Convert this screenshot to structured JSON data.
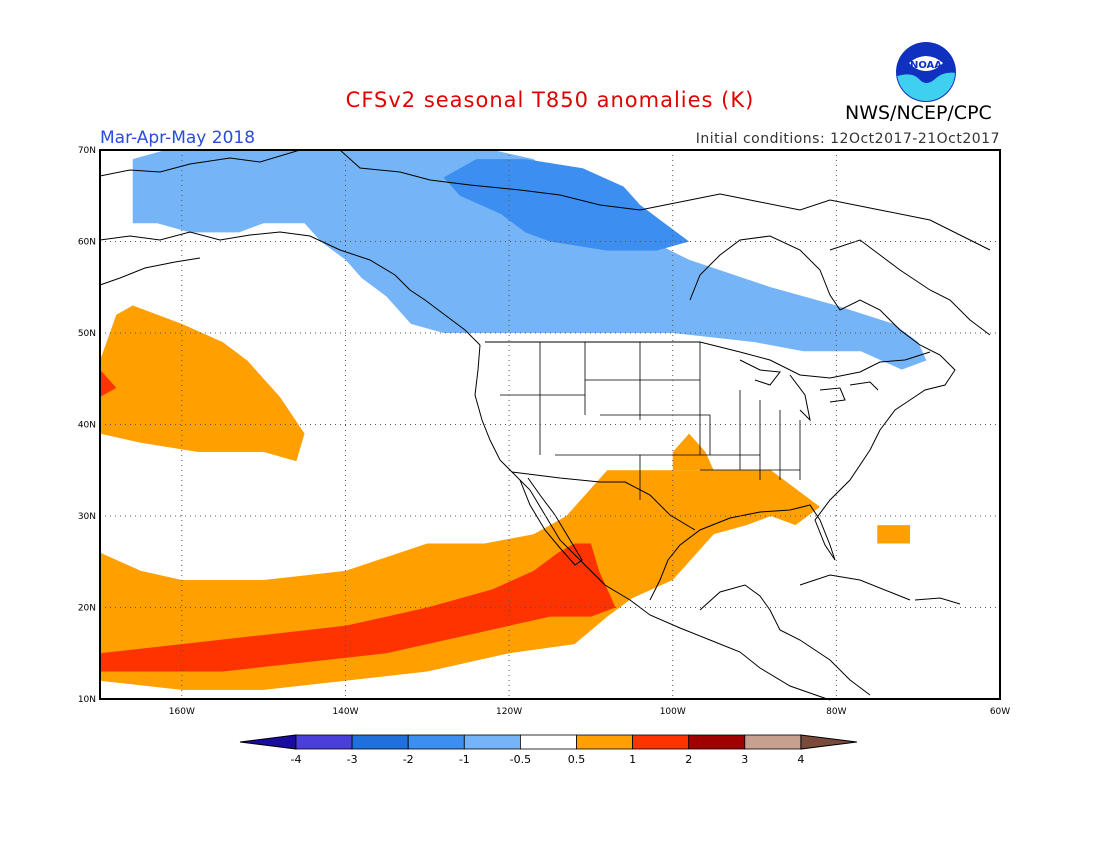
{
  "header": {
    "title": "CFSv2 seasonal T850 anomalies (K)",
    "agency": "NWS/NCEP/CPC",
    "season": "Mar-Apr-May 2018",
    "initial_conditions": "Initial conditions: 12Oct2017-21Oct2017",
    "logo_text": "NOAA"
  },
  "map": {
    "lon_range": [
      -170,
      -60
    ],
    "lat_range": [
      10,
      70
    ],
    "lon_ticks": [
      "160W",
      "140W",
      "120W",
      "100W",
      "80W",
      "60W"
    ],
    "lat_ticks": [
      "70N",
      "60N",
      "50N",
      "40N",
      "30N",
      "20N",
      "10N"
    ],
    "grid": true,
    "anomaly_fields": [
      {
        "level": "-1 to -0.5",
        "color": "#76b4f8",
        "polygon": [
          [
            -166,
            67
          ],
          [
            -166,
            62
          ],
          [
            -163,
            62
          ],
          [
            -159,
            61
          ],
          [
            -153,
            61
          ],
          [
            -150,
            62
          ],
          [
            -145,
            62
          ],
          [
            -143,
            60
          ],
          [
            -140,
            58
          ],
          [
            -138,
            56
          ],
          [
            -135,
            54
          ],
          [
            -132,
            51
          ],
          [
            -128,
            50
          ],
          [
            -110,
            50
          ],
          [
            -100,
            50
          ],
          [
            -90,
            49
          ],
          [
            -84,
            48
          ],
          [
            -77,
            48
          ],
          [
            -72,
            46
          ],
          [
            -69,
            47
          ],
          [
            -70,
            49
          ],
          [
            -73,
            51
          ],
          [
            -80,
            53
          ],
          [
            -88,
            55
          ],
          [
            -98,
            58
          ],
          [
            -107,
            62
          ],
          [
            -113,
            66
          ],
          [
            -117,
            69
          ],
          [
            -122,
            70
          ],
          [
            -150,
            70
          ],
          [
            -162,
            70
          ],
          [
            -166,
            69
          ]
        ]
      },
      {
        "level": "-2 to -1",
        "color": "#3c8ef0",
        "polygon": [
          [
            -128,
            67
          ],
          [
            -126,
            65
          ],
          [
            -121,
            63
          ],
          [
            -118,
            61
          ],
          [
            -115,
            60
          ],
          [
            -108,
            59
          ],
          [
            -102,
            59
          ],
          [
            -98,
            60
          ],
          [
            -101,
            62
          ],
          [
            -104,
            64
          ],
          [
            -106,
            66
          ],
          [
            -111,
            68
          ],
          [
            -118,
            69
          ],
          [
            -124,
            69
          ]
        ]
      },
      {
        "level": "0.5 to 1",
        "color": "#ff9f00",
        "polygon": [
          [
            -170,
            26
          ],
          [
            -165,
            24
          ],
          [
            -160,
            23
          ],
          [
            -150,
            23
          ],
          [
            -140,
            24
          ],
          [
            -130,
            27
          ],
          [
            -123,
            27
          ],
          [
            -117,
            28
          ],
          [
            -113,
            30
          ],
          [
            -110,
            33
          ],
          [
            -108,
            35
          ],
          [
            -104,
            35
          ],
          [
            -98,
            35
          ],
          [
            -92,
            35
          ],
          [
            -88,
            35
          ],
          [
            -85,
            33
          ],
          [
            -82,
            31
          ],
          [
            -85,
            29
          ],
          [
            -88,
            30
          ],
          [
            -91,
            29
          ],
          [
            -95,
            28
          ],
          [
            -98,
            25
          ],
          [
            -100,
            23
          ],
          [
            -105,
            21
          ],
          [
            -108,
            19
          ],
          [
            -112,
            16
          ],
          [
            -120,
            15
          ],
          [
            -130,
            13
          ],
          [
            -140,
            12
          ],
          [
            -150,
            11
          ],
          [
            -160,
            11
          ],
          [
            -170,
            12
          ]
        ]
      },
      {
        "level": "0.5 to 1",
        "color": "#ff9f00",
        "polygon": [
          [
            -170,
            47
          ],
          [
            -168,
            52
          ],
          [
            -166,
            53
          ],
          [
            -160,
            51
          ],
          [
            -155,
            49
          ],
          [
            -152,
            47
          ],
          [
            -150,
            45
          ],
          [
            -148,
            43
          ],
          [
            -145,
            39
          ],
          [
            -146,
            36
          ],
          [
            -150,
            37
          ],
          [
            -158,
            37
          ],
          [
            -165,
            38
          ],
          [
            -170,
            39
          ]
        ]
      },
      {
        "level": "0.5 to 1",
        "color": "#ff9f00",
        "polygon": [
          [
            -98,
            39
          ],
          [
            -97,
            38
          ],
          [
            -96,
            37
          ],
          [
            -95,
            35
          ],
          [
            -100,
            35
          ],
          [
            -100,
            37
          ]
        ]
      },
      {
        "level": "0.5 to 1",
        "color": "#ff9f00",
        "polygon": [
          [
            -75,
            27
          ],
          [
            -75,
            29
          ],
          [
            -71,
            29
          ],
          [
            -71,
            27
          ]
        ]
      },
      {
        "level": "1 to 2",
        "color": "#ff3300",
        "polygon": [
          [
            -170,
            15
          ],
          [
            -160,
            16
          ],
          [
            -150,
            17
          ],
          [
            -140,
            18
          ],
          [
            -130,
            20
          ],
          [
            -122,
            22
          ],
          [
            -117,
            24
          ],
          [
            -114,
            26
          ],
          [
            -112,
            27
          ],
          [
            -110,
            27
          ],
          [
            -109,
            24
          ],
          [
            -107,
            20
          ],
          [
            -110,
            19
          ],
          [
            -115,
            19
          ],
          [
            -125,
            17
          ],
          [
            -135,
            15
          ],
          [
            -145,
            14
          ],
          [
            -155,
            13
          ],
          [
            -165,
            13
          ],
          [
            -170,
            13
          ]
        ]
      },
      {
        "level": "1 to 2",
        "color": "#ff3300",
        "polygon": [
          [
            -170,
            46
          ],
          [
            -168,
            44
          ],
          [
            -170,
            43
          ]
        ]
      }
    ],
    "colorbar": {
      "labels": [
        "-4",
        "-3",
        "-2",
        "-1",
        "-0.5",
        "0.5",
        "1",
        "2",
        "3",
        "4"
      ],
      "colors": [
        "#1a0ca0",
        "#4a3fd8",
        "#1f6fdd",
        "#3c8ef0",
        "#76b4f8",
        "#ffffff",
        "#ff9f00",
        "#ff3300",
        "#a00000",
        "#c8a090",
        "#7a4a3a"
      ]
    }
  }
}
